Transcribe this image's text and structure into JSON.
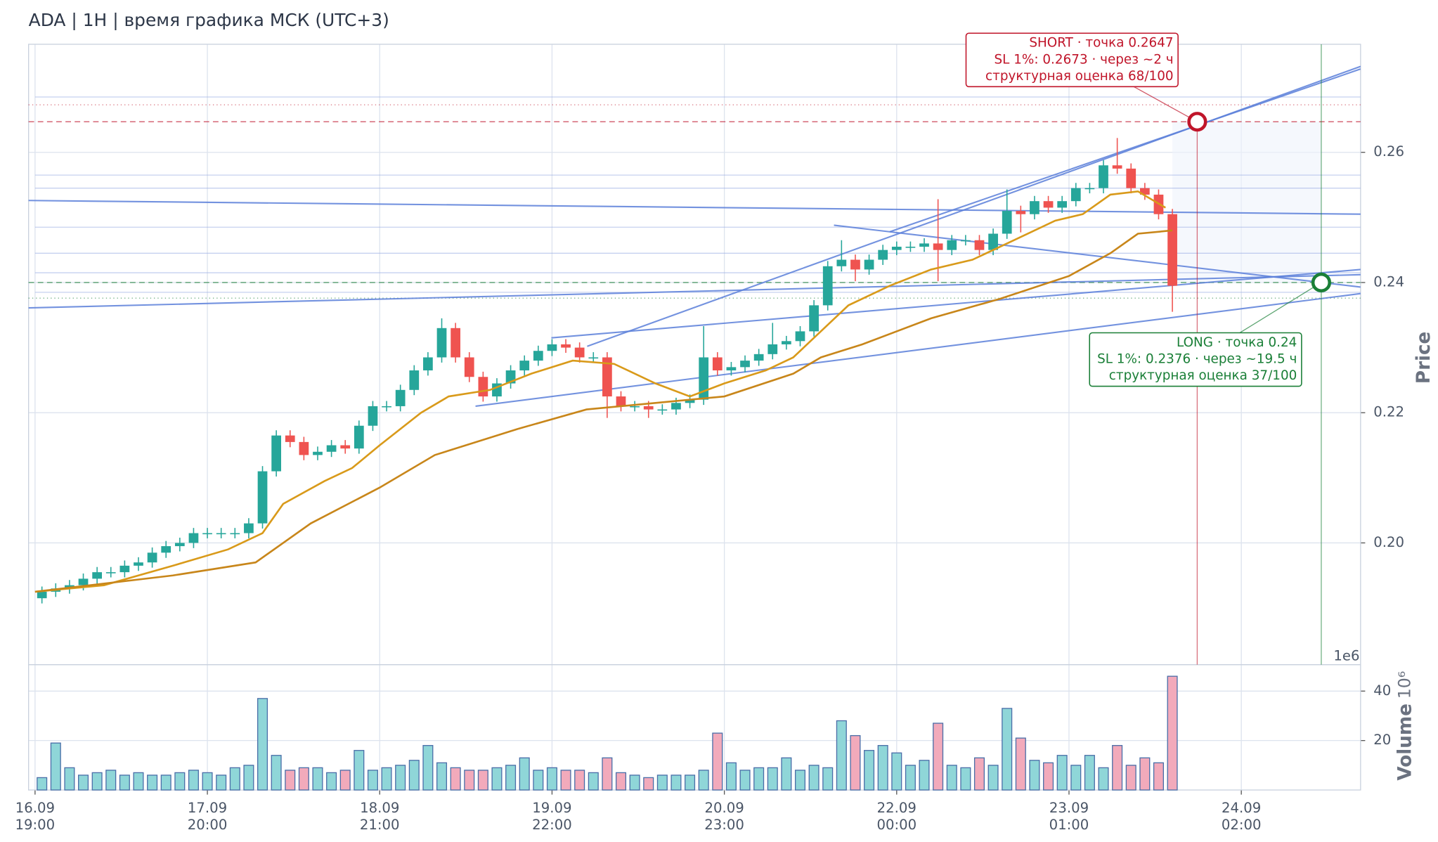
{
  "chart_data": {
    "type": "candlestick",
    "title": "ADA | 1H | время графика МСК (UTC+3)",
    "y_label": "Price",
    "offset_text": "1e6",
    "xlim": [
      -0.94,
      192.3
    ],
    "ylim": [
      0.1813,
      0.2766
    ],
    "xticks": [
      {
        "value": 0,
        "label": "16.09\n19:00"
      },
      {
        "value": 25,
        "label": "17.09\n20:00"
      },
      {
        "value": 50,
        "label": "18.09\n21:00"
      },
      {
        "value": 75,
        "label": "19.09\n22:00"
      },
      {
        "value": 100,
        "label": "20.09\n23:00"
      },
      {
        "value": 125,
        "label": "22.09\n00:00"
      },
      {
        "value": 150,
        "label": "23.09\n01:00"
      },
      {
        "value": 175,
        "label": "24.09\n02:00"
      }
    ],
    "yticks": [
      {
        "value": 0.2,
        "label": "0.20"
      },
      0.22,
      0.24,
      0.26
    ],
    "grid": true,
    "up_color": "#26a69a",
    "down_color": "#ef5350",
    "x": [
      1,
      3,
      5,
      7,
      9,
      11,
      13,
      15,
      17,
      19,
      21,
      23,
      25,
      27,
      29,
      31,
      33,
      35,
      37,
      39,
      41,
      43,
      45,
      47,
      49,
      51,
      53,
      55,
      57,
      59,
      61,
      63,
      65,
      67,
      69,
      71,
      73,
      75,
      77,
      79,
      81,
      83,
      85,
      87,
      89,
      91,
      93,
      95,
      97,
      99,
      101,
      103,
      105,
      107,
      109,
      111,
      113,
      115,
      117,
      119,
      121,
      123,
      125,
      127,
      129,
      131,
      133,
      135,
      137,
      139,
      141,
      143,
      145,
      147,
      149,
      151,
      153,
      155,
      157,
      159,
      161,
      163,
      165
    ],
    "open": [
      0.1915,
      0.1925,
      0.193,
      0.1935,
      0.1945,
      0.1955,
      0.1955,
      0.1965,
      0.197,
      0.1985,
      0.1995,
      0.2,
      0.2015,
      0.2015,
      0.2015,
      0.2015,
      0.203,
      0.211,
      0.2165,
      0.2155,
      0.2135,
      0.214,
      0.215,
      0.2145,
      0.218,
      0.221,
      0.221,
      0.2235,
      0.2265,
      0.2285,
      0.233,
      0.2285,
      0.2255,
      0.2225,
      0.2245,
      0.2265,
      0.228,
      0.2295,
      0.2305,
      0.23,
      0.2285,
      0.2285,
      0.2225,
      0.221,
      0.221,
      0.2205,
      0.2205,
      0.2215,
      0.222,
      0.2285,
      0.2265,
      0.227,
      0.228,
      0.229,
      0.2305,
      0.231,
      0.2325,
      0.2365,
      0.2425,
      0.2435,
      0.242,
      0.2435,
      0.245,
      0.2455,
      0.2455,
      0.246,
      0.245,
      0.2465,
      0.2465,
      0.245,
      0.2475,
      0.251,
      0.2505,
      0.2525,
      0.2515,
      0.2525,
      0.2545,
      0.2545,
      0.258,
      0.2575,
      0.2545,
      0.2535,
      0.2505
    ],
    "high": [
      0.1933,
      0.1938,
      0.1943,
      0.1953,
      0.1963,
      0.1963,
      0.1973,
      0.1978,
      0.1993,
      0.2003,
      0.2008,
      0.2023,
      0.2023,
      0.2023,
      0.2023,
      0.2038,
      0.2118,
      0.2173,
      0.2173,
      0.2163,
      0.2148,
      0.2158,
      0.2158,
      0.2188,
      0.2218,
      0.2218,
      0.2243,
      0.2273,
      0.2293,
      0.2345,
      0.2338,
      0.2293,
      0.2263,
      0.2253,
      0.2273,
      0.2288,
      0.2303,
      0.2313,
      0.2313,
      0.2308,
      0.2293,
      0.2293,
      0.2233,
      0.2218,
      0.2218,
      0.2213,
      0.2223,
      0.2228,
      0.2333,
      0.2293,
      0.2278,
      0.2288,
      0.2298,
      0.2338,
      0.2318,
      0.2333,
      0.2373,
      0.2433,
      0.2465,
      0.2443,
      0.2443,
      0.2458,
      0.2463,
      0.2463,
      0.2468,
      0.2528,
      0.2473,
      0.2473,
      0.2473,
      0.2483,
      0.2543,
      0.2518,
      0.2533,
      0.2533,
      0.2533,
      0.2553,
      0.2553,
      0.2588,
      0.2622,
      0.2583,
      0.2553,
      0.2543,
      0.2513
    ],
    "low": [
      0.1907,
      0.1917,
      0.1922,
      0.1927,
      0.1937,
      0.1947,
      0.1947,
      0.1957,
      0.1962,
      0.1977,
      0.1987,
      0.1992,
      0.2007,
      0.2007,
      0.2007,
      0.2007,
      0.2022,
      0.2102,
      0.2147,
      0.2127,
      0.2127,
      0.2132,
      0.2137,
      0.2137,
      0.2172,
      0.2202,
      0.2202,
      0.2227,
      0.2257,
      0.2277,
      0.2277,
      0.2247,
      0.2217,
      0.2217,
      0.2237,
      0.2257,
      0.2272,
      0.2287,
      0.2292,
      0.2277,
      0.2277,
      0.2192,
      0.2202,
      0.2202,
      0.2192,
      0.2197,
      0.2197,
      0.2207,
      0.2212,
      0.2257,
      0.2257,
      0.2262,
      0.2272,
      0.2282,
      0.2297,
      0.2302,
      0.2317,
      0.2357,
      0.2417,
      0.2402,
      0.2412,
      0.2427,
      0.2442,
      0.2447,
      0.2447,
      0.2402,
      0.2442,
      0.2457,
      0.2442,
      0.2442,
      0.2467,
      0.2477,
      0.2497,
      0.2507,
      0.2507,
      0.2517,
      0.2537,
      0.2537,
      0.2567,
      0.2537,
      0.2527,
      0.2497,
      0.2355
    ],
    "close": [
      0.1925,
      0.193,
      0.1935,
      0.1945,
      0.1955,
      0.1955,
      0.1965,
      0.197,
      0.1985,
      0.1995,
      0.2,
      0.2015,
      0.2015,
      0.2015,
      0.2015,
      0.203,
      0.211,
      0.2165,
      0.2155,
      0.2135,
      0.214,
      0.215,
      0.2145,
      0.218,
      0.221,
      0.221,
      0.2235,
      0.2265,
      0.2285,
      0.233,
      0.2285,
      0.2255,
      0.2225,
      0.2245,
      0.2265,
      0.228,
      0.2295,
      0.2305,
      0.23,
      0.2285,
      0.2285,
      0.2225,
      0.221,
      0.221,
      0.2205,
      0.2205,
      0.2215,
      0.222,
      0.2285,
      0.2265,
      0.227,
      0.228,
      0.229,
      0.2305,
      0.231,
      0.2325,
      0.2365,
      0.2425,
      0.2435,
      0.242,
      0.2435,
      0.245,
      0.2455,
      0.2455,
      0.246,
      0.245,
      0.2465,
      0.2465,
      0.245,
      0.2475,
      0.251,
      0.2505,
      0.2525,
      0.2515,
      0.2525,
      0.2545,
      0.2545,
      0.258,
      0.2575,
      0.2545,
      0.2535,
      0.2505,
      0.2395
    ],
    "ema": [
      {
        "color": "#d99a1a",
        "x": [
          0,
          10,
          20,
          28,
          33,
          36,
          42,
          46,
          50,
          56,
          60,
          66,
          72,
          78,
          84,
          90,
          95,
          100,
          106,
          110,
          114,
          118,
          124,
          130,
          136,
          142,
          148,
          152,
          156,
          160,
          164
        ],
        "values": [
          0.1925,
          0.1935,
          0.1965,
          0.199,
          0.2015,
          0.206,
          0.2095,
          0.2115,
          0.215,
          0.22,
          0.2225,
          0.2235,
          0.226,
          0.228,
          0.2275,
          0.2245,
          0.2225,
          0.2245,
          0.2265,
          0.2285,
          0.2325,
          0.2365,
          0.2395,
          0.242,
          0.2435,
          0.2465,
          0.2495,
          0.2505,
          0.2535,
          0.254,
          0.2515
        ]
      },
      {
        "color": "#c8861a",
        "x": [
          0,
          20,
          32,
          40,
          50,
          58,
          70,
          80,
          90,
          100,
          110,
          114,
          120,
          130,
          140,
          150,
          156,
          160,
          165
        ],
        "values": [
          0.1925,
          0.195,
          0.197,
          0.203,
          0.2085,
          0.2135,
          0.2175,
          0.2205,
          0.2215,
          0.2225,
          0.226,
          0.2285,
          0.2305,
          0.2345,
          0.2375,
          0.241,
          0.2445,
          0.2475,
          0.248
        ]
      }
    ],
    "trendline_color": "#5b7fd9",
    "trendlines": [
      {
        "x": [
          80.1,
          192.3
        ],
        "values": [
          0.2302,
          0.2732
        ]
      },
      {
        "x": [
          124,
          192.3
        ],
        "values": [
          0.2478,
          0.2728
        ]
      },
      {
        "x": [
          63.9,
          192.3
        ],
        "values": [
          0.221,
          0.2383
        ]
      },
      {
        "x": [
          74.9,
          192.3
        ],
        "values": [
          0.2315,
          0.242
        ]
      },
      {
        "x": [
          115.9,
          192.3
        ],
        "values": [
          0.2488,
          0.2393
        ]
      },
      {
        "x": [
          -0.94,
          192.3
        ],
        "values": [
          0.2526,
          0.2505
        ]
      },
      {
        "x": [
          -0.94,
          192.3
        ],
        "values": [
          0.2361,
          0.2412
        ]
      }
    ],
    "levels": [
      0.2685,
      0.2565,
      0.2545,
      0.2485,
      0.2445,
      0.2415,
      0.2385
    ],
    "signals": [
      {
        "x": 168.6,
        "value": 0.2647,
        "sl": 0.2673,
        "color": "#c0152a",
        "lines": [
          "SHORT · точка 0.2647",
          "SL 1%: 0.2673 · через ~2 ч",
          "структурная оценка 68/100"
        ]
      },
      {
        "x": 186.6,
        "value": 0.24,
        "sl": 0.2376,
        "color": "#1a7f37",
        "lines": [
          "LONG · точка 0.24",
          "SL 1%: 0.2376 · через ~19.5 ч",
          "структурная оценка 37/100"
        ]
      }
    ],
    "volume": {
      "label": "Volume",
      "scale_label": "10⁶",
      "ylim": [
        0,
        50.7
      ],
      "yticks": [
        20,
        40
      ],
      "up_color": "#8fd6d8",
      "down_color": "#f2aabb",
      "edge": "#4a6ea8",
      "values": [
        5,
        19,
        9,
        6,
        7,
        8,
        6,
        7,
        6,
        6,
        7,
        8,
        7,
        6,
        9,
        10,
        37,
        14,
        8,
        9,
        9,
        7,
        8,
        16,
        8,
        9,
        10,
        12,
        18,
        11,
        9,
        8,
        8,
        9,
        10,
        13,
        8,
        9,
        8,
        8,
        7,
        13,
        7,
        6,
        5,
        6,
        6,
        6,
        8,
        23,
        11,
        8,
        9,
        9,
        13,
        8,
        10,
        9,
        28,
        22,
        16,
        18,
        15,
        10,
        12,
        27,
        10,
        9,
        13,
        10,
        33,
        21,
        12,
        11,
        14,
        10,
        14,
        9,
        18,
        10,
        13,
        11,
        46
      ]
    }
  }
}
